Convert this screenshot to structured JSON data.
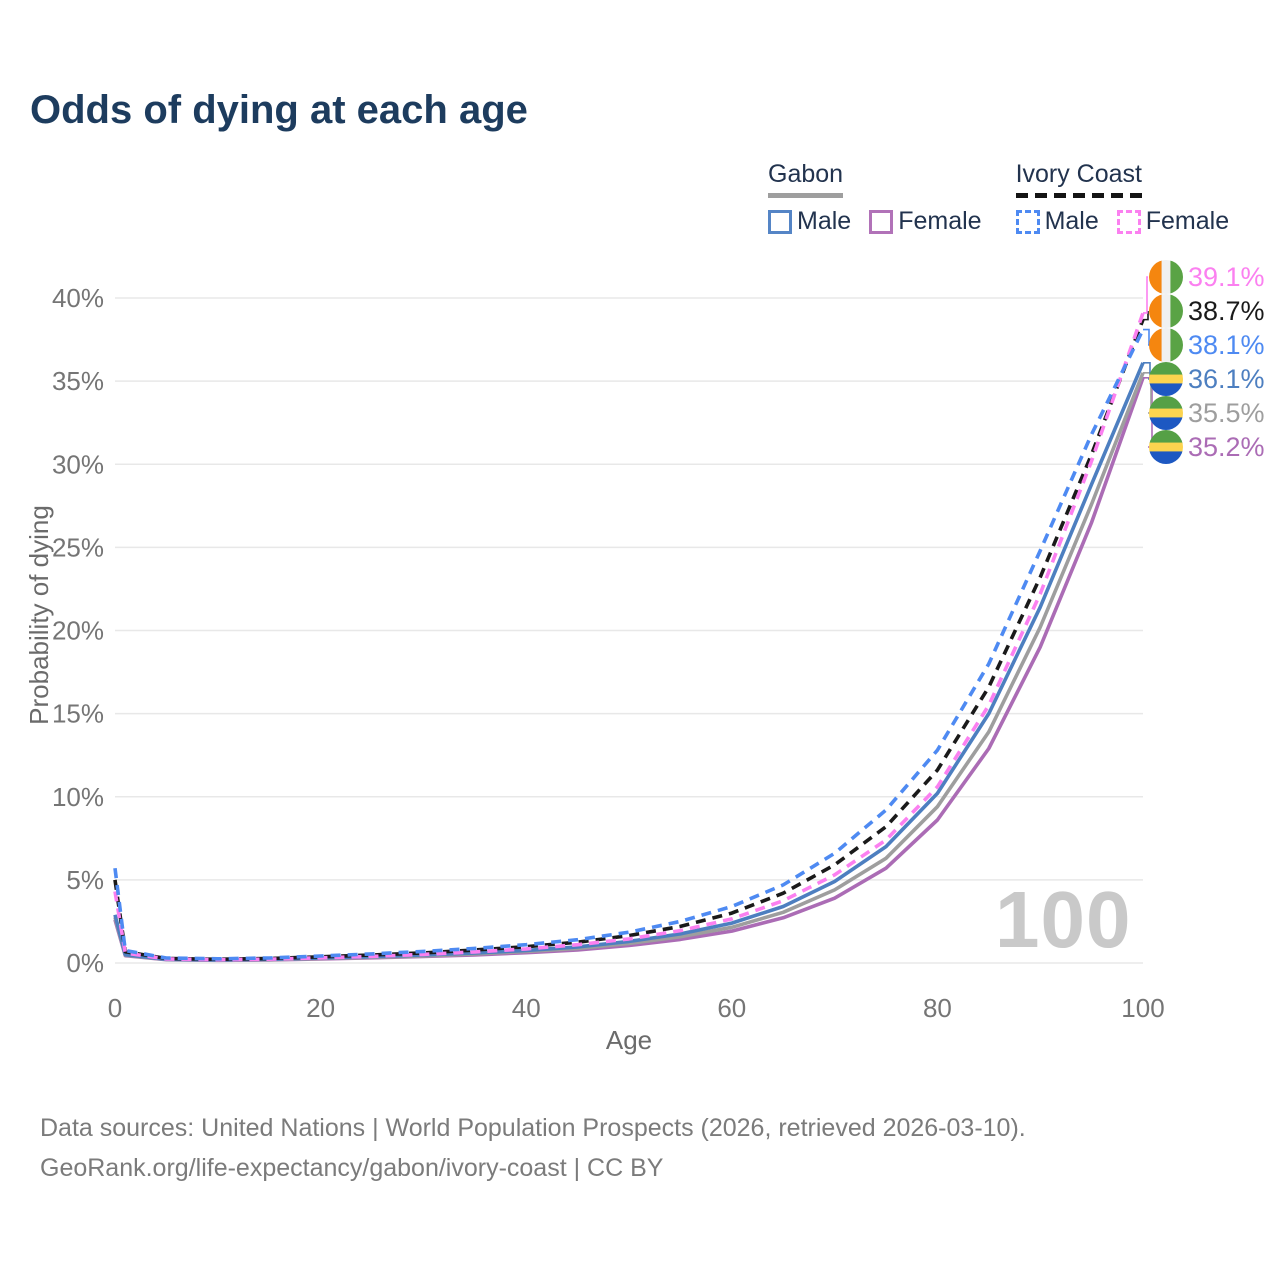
{
  "title": "Odds of dying at each age",
  "watermark": "100",
  "legend": {
    "groups": [
      {
        "id": "gabon",
        "title": "Gabon",
        "underline": "solid",
        "items": [
          {
            "label": "Male",
            "color": "#5585c6",
            "dashed": false
          },
          {
            "label": "Female",
            "color": "#b172b8",
            "dashed": false
          }
        ]
      },
      {
        "id": "ivory-coast",
        "title": "Ivory Coast",
        "underline": "dashed",
        "items": [
          {
            "label": "Male",
            "color": "#4e8af2",
            "dashed": true
          },
          {
            "label": "Female",
            "color": "#fb80f0",
            "dashed": true
          }
        ]
      }
    ]
  },
  "footer": {
    "line1": "Data sources: United Nations | World Population Prospects (2026, retrieved 2026-03-10).",
    "line2": "GeoRank.org/life-expectancy/gabon/ivory-coast | CC BY"
  },
  "chart_data": {
    "type": "line",
    "title": "Odds of dying at each age",
    "xlabel": "Age",
    "ylabel": "Probability of dying",
    "x_ticks": [
      0,
      20,
      40,
      60,
      80,
      100
    ],
    "y_ticks_pct": [
      0,
      5,
      10,
      15,
      20,
      25,
      30,
      35,
      40
    ],
    "xlim": [
      0,
      100
    ],
    "ylim": [
      0,
      41.5
    ],
    "grid": true,
    "hovered_age": "100",
    "ages": [
      0,
      1,
      5,
      10,
      15,
      20,
      25,
      30,
      35,
      40,
      45,
      50,
      55,
      60,
      65,
      70,
      75,
      80,
      85,
      90,
      95,
      100
    ],
    "flags": {
      "gabon": {
        "orientation": "horizontal",
        "colors": [
          "#55a046",
          "#fcd44f",
          "#1d58c2"
        ]
      },
      "ivory-coast": {
        "orientation": "vertical",
        "colors": [
          "#f5860f",
          "#f0f0f0",
          "#5aa345"
        ]
      }
    },
    "series": [
      {
        "name": "Gabon Female",
        "country": "Gabon",
        "sex": "Female",
        "flag": "gabon",
        "color": "#ab6cb5",
        "dashed": false,
        "end_label": "35.2%",
        "label_rank": 5,
        "values": [
          2.6,
          0.44,
          0.2,
          0.16,
          0.18,
          0.24,
          0.31,
          0.39,
          0.49,
          0.62,
          0.79,
          1.05,
          1.42,
          1.92,
          2.72,
          3.9,
          5.7,
          8.6,
          12.9,
          19.0,
          26.5,
          35.2
        ]
      },
      {
        "name": "Gabon Both sexes",
        "country": "Gabon",
        "sex": "Both",
        "flag": "gabon",
        "color": "#9e9e9e",
        "dashed": false,
        "end_label": "35.5%",
        "label_rank": 4,
        "values": [
          2.75,
          0.47,
          0.21,
          0.17,
          0.2,
          0.27,
          0.34,
          0.43,
          0.55,
          0.69,
          0.88,
          1.17,
          1.58,
          2.15,
          3.05,
          4.4,
          6.3,
          9.4,
          13.9,
          20.2,
          27.6,
          35.5
        ]
      },
      {
        "name": "Gabon Male",
        "country": "Gabon",
        "sex": "Male",
        "flag": "gabon",
        "color": "#4d7fc0",
        "dashed": false,
        "end_label": "36.1%",
        "label_rank": 3,
        "values": [
          2.9,
          0.5,
          0.22,
          0.18,
          0.22,
          0.3,
          0.38,
          0.48,
          0.6,
          0.76,
          0.97,
          1.3,
          1.75,
          2.4,
          3.4,
          4.9,
          7.0,
          10.2,
          15.0,
          21.4,
          28.8,
          36.1
        ]
      },
      {
        "name": "Ivory Coast Both sexes",
        "country": "Ivory Coast",
        "sex": "Both",
        "flag": "ivory-coast",
        "color": "#1a1a1a",
        "dashed": true,
        "end_label": "38.7%",
        "label_rank": 1,
        "values": [
          5.0,
          0.68,
          0.27,
          0.22,
          0.27,
          0.37,
          0.48,
          0.61,
          0.78,
          0.98,
          1.25,
          1.65,
          2.2,
          3.0,
          4.2,
          5.9,
          8.2,
          11.6,
          16.6,
          23.2,
          30.6,
          38.7
        ]
      },
      {
        "name": "Ivory Coast Female",
        "country": "Ivory Coast",
        "sex": "Female",
        "flag": "ivory-coast",
        "color": "#fb80f0",
        "dashed": true,
        "end_label": "39.1%",
        "label_rank": 0,
        "values": [
          4.3,
          0.6,
          0.24,
          0.2,
          0.23,
          0.31,
          0.4,
          0.52,
          0.67,
          0.85,
          1.1,
          1.45,
          1.95,
          2.65,
          3.75,
          5.3,
          7.4,
          10.6,
          15.5,
          22.2,
          30.2,
          39.1
        ]
      },
      {
        "name": "Ivory Coast Male",
        "country": "Ivory Coast",
        "sex": "Male",
        "flag": "ivory-coast",
        "color": "#4e8af2",
        "dashed": true,
        "end_label": "38.1%",
        "label_rank": 2,
        "values": [
          5.7,
          0.75,
          0.3,
          0.25,
          0.3,
          0.42,
          0.55,
          0.7,
          0.88,
          1.1,
          1.4,
          1.85,
          2.5,
          3.4,
          4.7,
          6.6,
          9.2,
          12.8,
          18.0,
          24.8,
          31.8,
          38.1
        ]
      }
    ]
  }
}
